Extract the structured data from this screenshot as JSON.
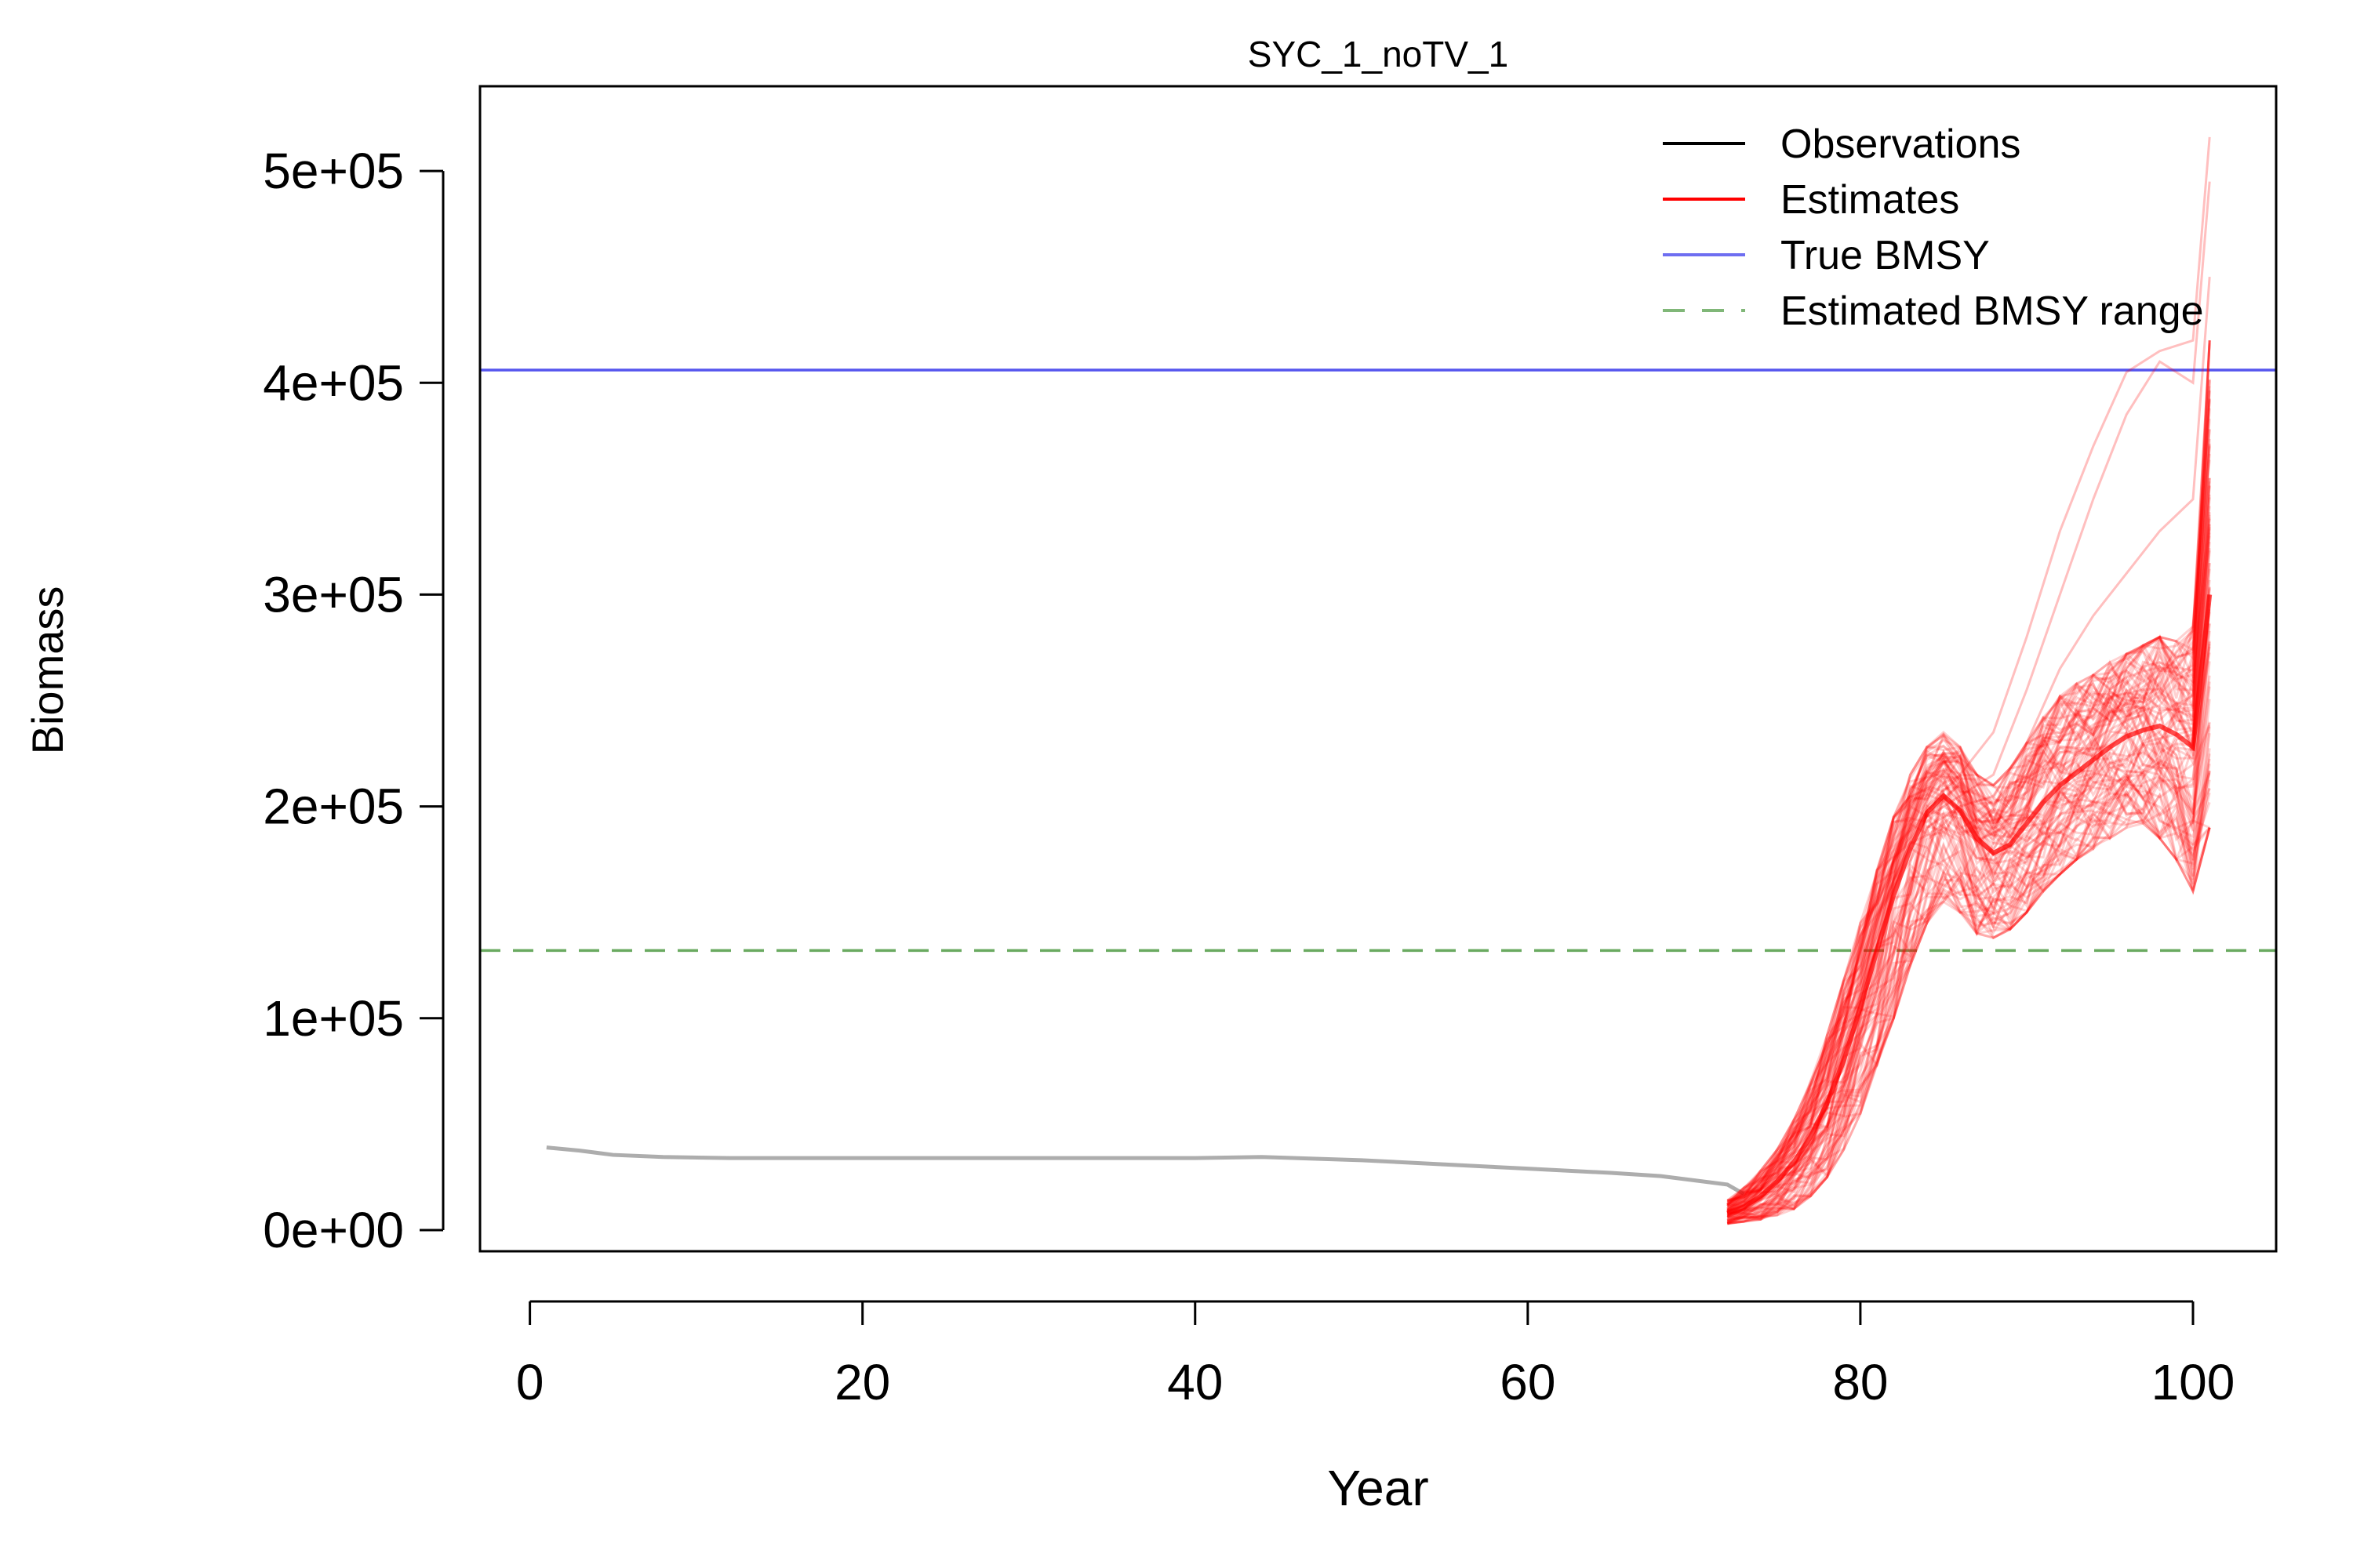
{
  "chart_data": {
    "type": "line",
    "title": "SYC_1_noTV_1",
    "xlabel": "Year",
    "ylabel": "Biomass",
    "xlim": [
      -3,
      105
    ],
    "ylim": [
      -10000,
      540000
    ],
    "x_ticks": [
      0,
      20,
      40,
      60,
      80,
      100
    ],
    "x_tick_labels": [
      "0",
      "20",
      "40",
      "60",
      "80",
      "100"
    ],
    "y_ticks": [
      0,
      100000,
      200000,
      300000,
      400000,
      500000
    ],
    "y_tick_labels": [
      "0e+00",
      "1e+05",
      "2e+05",
      "3e+05",
      "4e+05",
      "5e+05"
    ],
    "grid": false,
    "legend_position": "top-right",
    "legend": [
      {
        "label": "Observations",
        "color": "#000000",
        "dash": "solid"
      },
      {
        "label": "Estimates",
        "color": "#ff0000",
        "dash": "solid"
      },
      {
        "label": "True BMSY",
        "color": "#5555ee",
        "dash": "solid"
      },
      {
        "label": "Estimated BMSY range",
        "color": "#6aaa60",
        "dash": "dashed"
      }
    ],
    "true_bmsy": 406000,
    "estimated_bmsy": 132000,
    "observations": {
      "color": "#999999",
      "x": [
        1,
        3,
        5,
        8,
        12,
        20,
        30,
        40,
        44,
        50,
        55,
        60,
        65,
        68,
        70,
        72,
        73
      ],
      "y": [
        39000,
        37500,
        35500,
        34500,
        34000,
        34000,
        34000,
        34000,
        34500,
        33000,
        31000,
        29000,
        27000,
        25500,
        23500,
        21500,
        17000
      ]
    },
    "estimates": {
      "color": "#ff0000",
      "n_runs": 100,
      "x": [
        72,
        73,
        74,
        75,
        76,
        77,
        78,
        79,
        80,
        81,
        82,
        83,
        84,
        85,
        86,
        87,
        88,
        89,
        90,
        91,
        92,
        93,
        94,
        95,
        96,
        97,
        98,
        99,
        100,
        101
      ],
      "median": [
        8000,
        11000,
        16000,
        23000,
        32000,
        44000,
        60000,
        80000,
        105000,
        132000,
        158000,
        180000,
        197000,
        205000,
        198000,
        185000,
        178000,
        182000,
        192000,
        202000,
        210000,
        216000,
        222000,
        228000,
        233000,
        236000,
        238000,
        234000,
        228000,
        300000
      ],
      "lower": [
        3000,
        4000,
        5000,
        7000,
        10000,
        16000,
        25000,
        38000,
        55000,
        78000,
        100000,
        125000,
        145000,
        155000,
        150000,
        140000,
        138000,
        142000,
        150000,
        160000,
        168000,
        175000,
        180000,
        185000,
        190000,
        192000,
        185000,
        175000,
        160000,
        190000
      ],
      "upper": [
        14000,
        20000,
        28000,
        38000,
        52000,
        70000,
        92000,
        118000,
        145000,
        170000,
        195000,
        215000,
        228000,
        235000,
        228000,
        215000,
        210000,
        218000,
        230000,
        242000,
        252000,
        258000,
        262000,
        268000,
        272000,
        276000,
        280000,
        278000,
        285000,
        420000
      ],
      "outliers": [
        {
          "x": [
            84,
            86,
            88,
            90,
            92,
            94,
            96,
            98,
            100,
            101
          ],
          "y": [
            200000,
            215000,
            235000,
            280000,
            330000,
            370000,
            405000,
            415000,
            420000,
            516000
          ]
        },
        {
          "x": [
            84,
            86,
            88,
            90,
            92,
            94,
            96,
            98,
            100,
            101
          ],
          "y": [
            195000,
            205000,
            215000,
            255000,
            300000,
            345000,
            385000,
            410000,
            400000,
            495000
          ]
        },
        {
          "x": [
            84,
            86,
            88,
            90,
            92,
            94,
            96,
            98,
            100,
            101
          ],
          "y": [
            190000,
            200000,
            205000,
            230000,
            265000,
            290000,
            310000,
            330000,
            345000,
            450000
          ]
        }
      ]
    }
  }
}
